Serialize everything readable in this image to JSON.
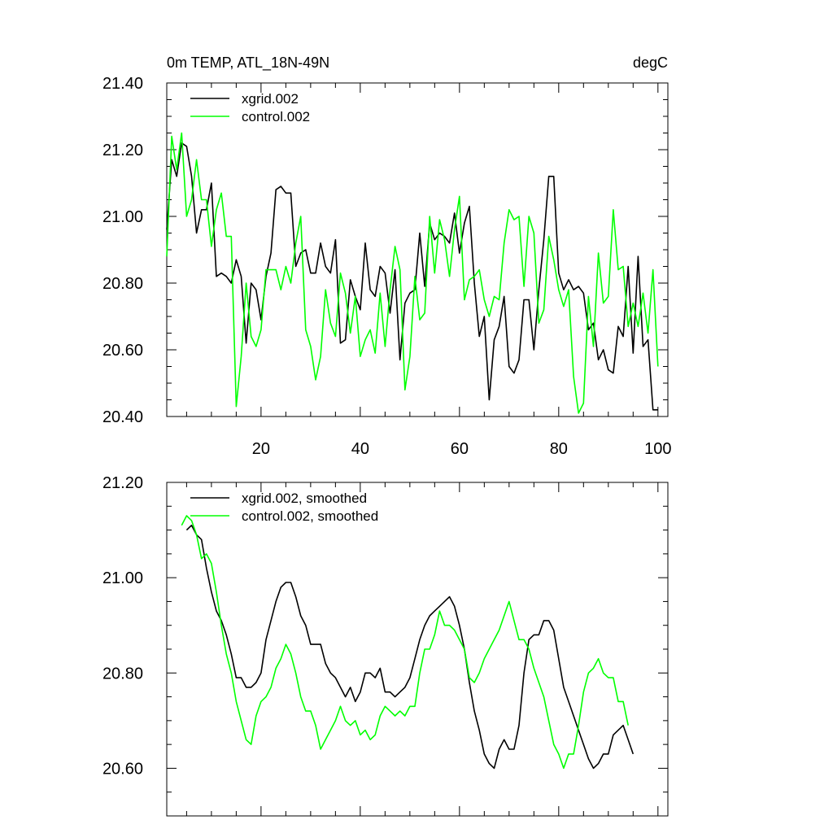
{
  "chart_data": [
    {
      "type": "line",
      "title_left": "0m TEMP, ATL_18N-49N",
      "title_right": "degC",
      "xlim": [
        1,
        102
      ],
      "ylim": [
        20.4,
        21.4
      ],
      "xticks": [
        20,
        40,
        60,
        80,
        100
      ],
      "yticks": [
        20.4,
        20.6,
        20.8,
        21.0,
        21.2,
        21.4
      ],
      "ytick_labels": [
        "20.40",
        "20.60",
        "20.80",
        "21.00",
        "21.20",
        "21.40"
      ],
      "xtick_labels": [
        "20",
        "40",
        "60",
        "80",
        "100"
      ],
      "legend_placement": "top-left",
      "series": [
        {
          "name": "xgrid.002",
          "color": "#000000",
          "x_start": 1,
          "values": [
            20.96,
            21.17,
            21.12,
            21.22,
            21.21,
            21.12,
            20.95,
            21.02,
            21.02,
            21.1,
            20.82,
            20.83,
            20.82,
            20.8,
            20.87,
            20.82,
            20.62,
            20.8,
            20.78,
            20.69,
            20.82,
            20.89,
            21.08,
            21.09,
            21.07,
            21.07,
            20.85,
            20.89,
            20.9,
            20.83,
            20.83,
            20.92,
            20.85,
            20.83,
            20.93,
            20.62,
            20.63,
            20.81,
            20.76,
            20.72,
            20.92,
            20.78,
            20.76,
            20.85,
            20.83,
            20.71,
            20.84,
            20.57,
            20.74,
            20.77,
            20.78,
            20.95,
            20.79,
            20.98,
            20.93,
            20.95,
            20.94,
            20.92,
            21.01,
            20.89,
            20.98,
            21.03,
            20.8,
            20.64,
            20.7,
            20.45,
            20.63,
            20.67,
            20.76,
            20.55,
            20.53,
            20.57,
            20.75,
            20.75,
            20.6,
            20.78,
            20.93,
            21.12,
            21.12,
            20.83,
            20.78,
            20.81,
            20.78,
            20.79,
            20.77,
            20.66,
            20.68,
            20.57,
            20.6,
            20.54,
            20.53,
            20.67,
            20.64,
            20.85,
            20.59,
            20.88,
            20.61,
            20.63,
            20.42,
            20.42
          ]
        },
        {
          "name": "control.002",
          "color": "#00ff00",
          "x_start": 1,
          "values": [
            20.88,
            21.24,
            21.14,
            21.25,
            21.0,
            21.05,
            21.17,
            21.05,
            21.05,
            20.91,
            21.02,
            21.07,
            20.94,
            20.94,
            20.43,
            20.58,
            20.8,
            20.64,
            20.61,
            20.66,
            20.84,
            20.84,
            20.84,
            20.78,
            20.85,
            20.8,
            20.92,
            21.0,
            20.66,
            20.61,
            20.51,
            20.58,
            20.78,
            20.68,
            20.64,
            20.83,
            20.77,
            20.65,
            20.76,
            20.58,
            20.63,
            20.66,
            20.59,
            20.77,
            20.61,
            20.78,
            20.91,
            20.84,
            20.48,
            20.58,
            20.82,
            20.69,
            20.71,
            21.0,
            20.83,
            20.99,
            20.93,
            20.82,
            20.96,
            21.06,
            20.75,
            20.81,
            20.82,
            20.84,
            20.75,
            20.7,
            20.76,
            20.75,
            20.92,
            21.02,
            20.99,
            21.0,
            20.79,
            21.0,
            20.95,
            20.68,
            20.72,
            20.94,
            20.87,
            20.78,
            20.73,
            20.78,
            20.52,
            20.41,
            20.44,
            20.76,
            20.61,
            20.89,
            20.74,
            20.76,
            21.02,
            20.84,
            20.85,
            20.67,
            20.74,
            20.67,
            20.77,
            20.65,
            20.84,
            20.55
          ]
        }
      ]
    },
    {
      "type": "line",
      "xlim": [
        1,
        102
      ],
      "ylim": [
        20.5,
        21.2
      ],
      "xticks": [
        20,
        40,
        60,
        80,
        100
      ],
      "yticks": [
        20.6,
        20.8,
        21.0,
        21.2
      ],
      "ytick_labels": [
        "20.60",
        "20.80",
        "21.00",
        "21.20"
      ],
      "legend_placement": "top-left",
      "series": [
        {
          "name": "xgrid.002, smoothed",
          "color": "#000000",
          "x_start": 5,
          "values": [
            21.1,
            21.11,
            21.09,
            21.08,
            21.02,
            20.97,
            20.93,
            20.91,
            20.88,
            20.84,
            20.79,
            20.79,
            20.77,
            20.77,
            20.78,
            20.8,
            20.87,
            20.91,
            20.95,
            20.98,
            20.99,
            20.99,
            20.96,
            20.92,
            20.9,
            20.86,
            20.86,
            20.86,
            20.82,
            20.8,
            20.79,
            20.77,
            20.75,
            20.77,
            20.74,
            20.76,
            20.8,
            20.8,
            20.79,
            20.81,
            20.76,
            20.76,
            20.75,
            20.76,
            20.77,
            20.79,
            20.83,
            20.87,
            20.9,
            20.92,
            20.93,
            20.94,
            20.95,
            20.96,
            20.94,
            20.9,
            20.85,
            20.78,
            20.72,
            20.68,
            20.63,
            20.61,
            20.6,
            20.64,
            20.66,
            20.64,
            20.64,
            20.69,
            20.8,
            20.87,
            20.88,
            20.88,
            20.91,
            20.91,
            20.89,
            20.83,
            20.77,
            20.74,
            20.71,
            20.68,
            20.65,
            20.62,
            20.6,
            20.61,
            20.63,
            20.63,
            20.67,
            20.68,
            20.69,
            20.66,
            20.63
          ]
        },
        {
          "name": "control.002, smoothed",
          "color": "#00ff00",
          "x_start": 4,
          "values": [
            21.11,
            21.13,
            21.12,
            21.09,
            21.04,
            21.05,
            21.03,
            20.97,
            20.9,
            20.84,
            20.8,
            20.74,
            20.7,
            20.66,
            20.65,
            20.71,
            20.74,
            20.75,
            20.77,
            20.81,
            20.83,
            20.86,
            20.84,
            20.8,
            20.75,
            20.72,
            20.72,
            20.69,
            20.64,
            20.66,
            20.68,
            20.7,
            20.73,
            20.7,
            20.69,
            20.7,
            20.67,
            20.68,
            20.66,
            20.67,
            20.71,
            20.73,
            20.72,
            20.71,
            20.72,
            20.71,
            20.73,
            20.73,
            20.8,
            20.85,
            20.85,
            20.88,
            20.93,
            20.9,
            20.9,
            20.89,
            20.87,
            20.85,
            20.79,
            20.78,
            20.8,
            20.83,
            20.85,
            20.87,
            20.89,
            20.92,
            20.95,
            20.91,
            20.87,
            20.87,
            20.85,
            20.81,
            20.78,
            20.75,
            20.7,
            20.65,
            20.63,
            20.6,
            20.63,
            20.63,
            20.69,
            20.76,
            20.8,
            20.81,
            20.83,
            20.8,
            20.79,
            20.79,
            20.74,
            20.74,
            20.69
          ]
        }
      ]
    }
  ]
}
